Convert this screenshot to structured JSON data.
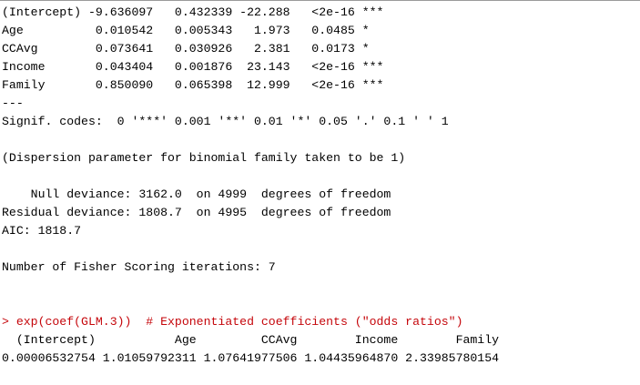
{
  "console": {
    "colors": {
      "output_text": "#000000",
      "input_text": "#c5060b",
      "background": "#ffffff"
    },
    "lines": [
      {
        "type": "output",
        "text": "(Intercept) -9.636097   0.432339 -22.288   <2e-16 ***"
      },
      {
        "type": "output",
        "text": "Age          0.010542   0.005343   1.973   0.0485 *  "
      },
      {
        "type": "output",
        "text": "CCAvg        0.073641   0.030926   2.381   0.0173 *  "
      },
      {
        "type": "output",
        "text": "Income       0.043404   0.001876  23.143   <2e-16 ***"
      },
      {
        "type": "output",
        "text": "Family       0.850090   0.065398  12.999   <2e-16 ***"
      },
      {
        "type": "output",
        "text": "---"
      },
      {
        "type": "output",
        "text": "Signif. codes:  0 '***' 0.001 '**' 0.01 '*' 0.05 '.' 0.1 ' ' 1"
      },
      {
        "type": "output",
        "text": ""
      },
      {
        "type": "output",
        "text": "(Dispersion parameter for binomial family taken to be 1)"
      },
      {
        "type": "output",
        "text": ""
      },
      {
        "type": "output",
        "text": "    Null deviance: 3162.0  on 4999  degrees of freedom"
      },
      {
        "type": "output",
        "text": "Residual deviance: 1808.7  on 4995  degrees of freedom"
      },
      {
        "type": "output",
        "text": "AIC: 1818.7"
      },
      {
        "type": "output",
        "text": ""
      },
      {
        "type": "output",
        "text": "Number of Fisher Scoring iterations: 7"
      },
      {
        "type": "output",
        "text": ""
      },
      {
        "type": "output",
        "text": ""
      },
      {
        "type": "input",
        "text": "> exp(coef(GLM.3))  # Exponentiated coefficients (\"odds ratios\")"
      },
      {
        "type": "output",
        "text": "  (Intercept)           Age         CCAvg        Income        Family "
      },
      {
        "type": "output",
        "text": "0.00006532754 1.01059792311 1.07641977506 1.04435964870 2.33985780154 "
      }
    ]
  }
}
